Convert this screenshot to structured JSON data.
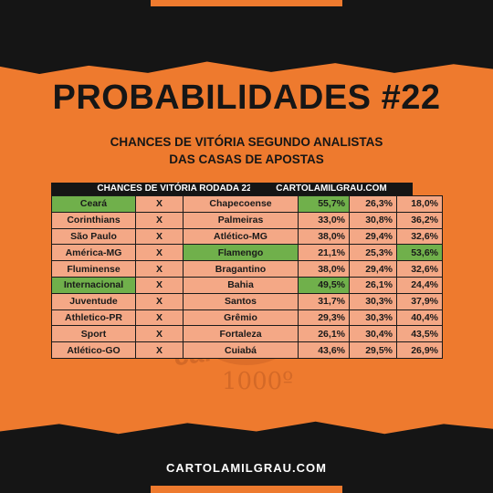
{
  "header": {
    "title": "PROBABILIDADES #22",
    "subtitle_line1": "CHANCES DE VITÓRIA SEGUNDO ANALISTAS",
    "subtitle_line2": "DAS CASAS DE APOSTAS"
  },
  "table": {
    "head_left": "CHANCES DE VITÓRIA RODADA 22",
    "head_right": "CARTOLAMILGRAU.COM",
    "rows": [
      {
        "home": "Ceará",
        "vs": "X",
        "away": "Chapecoense",
        "p_home": "55,7%",
        "p_draw": "26,3%",
        "p_away": "18,0%",
        "hl": "home"
      },
      {
        "home": "Corinthians",
        "vs": "X",
        "away": "Palmeiras",
        "p_home": "33,0%",
        "p_draw": "30,8%",
        "p_away": "36,2%",
        "hl": ""
      },
      {
        "home": "São Paulo",
        "vs": "X",
        "away": "Atlético-MG",
        "p_home": "38,0%",
        "p_draw": "29,4%",
        "p_away": "32,6%",
        "hl": ""
      },
      {
        "home": "América-MG",
        "vs": "X",
        "away": "Flamengo",
        "p_home": "21,1%",
        "p_draw": "25,3%",
        "p_away": "53,6%",
        "hl": "away"
      },
      {
        "home": "Fluminense",
        "vs": "X",
        "away": "Bragantino",
        "p_home": "38,0%",
        "p_draw": "29,4%",
        "p_away": "32,6%",
        "hl": ""
      },
      {
        "home": "Internacional",
        "vs": "X",
        "away": "Bahia",
        "p_home": "49,5%",
        "p_draw": "26,1%",
        "p_away": "24,4%",
        "hl": "home"
      },
      {
        "home": "Juventude",
        "vs": "X",
        "away": "Santos",
        "p_home": "31,7%",
        "p_draw": "30,3%",
        "p_away": "37,9%",
        "hl": ""
      },
      {
        "home": "Athletico-PR",
        "vs": "X",
        "away": "Grêmio",
        "p_home": "29,3%",
        "p_draw": "30,3%",
        "p_away": "40,4%",
        "hl": ""
      },
      {
        "home": "Sport",
        "vs": "X",
        "away": "Fortaleza",
        "p_home": "26,1%",
        "p_draw": "30,4%",
        "p_away": "43,5%",
        "hl": ""
      },
      {
        "home": "Atlético-GO",
        "vs": "X",
        "away": "Cuiabá",
        "p_home": "43,6%",
        "p_draw": "29,5%",
        "p_away": "26,9%",
        "hl": ""
      }
    ]
  },
  "watermark": {
    "text": "cartolaFC",
    "number": "1000º"
  },
  "footer": {
    "site": "CARTOLAMILGRAU.COM"
  },
  "colors": {
    "orange": "#ee7a2e",
    "cell": "#f4a886",
    "highlight": "#70b04b",
    "dark": "#151515"
  }
}
